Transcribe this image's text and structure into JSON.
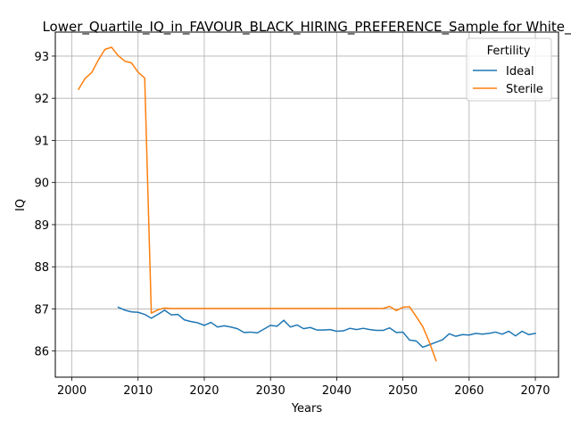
{
  "chart_data": {
    "type": "line",
    "title": "Lower_Quartile_IQ_in_FAVOUR_BLACK_HIRING_PREFERENCE_Sample for White_",
    "xlabel": "Years",
    "ylabel": "IQ",
    "xlim": [
      1997.5,
      2073.5
    ],
    "ylim": [
      85.38,
      93.57
    ],
    "xticks": [
      2000,
      2010,
      2020,
      2030,
      2040,
      2050,
      2060,
      2070
    ],
    "yticks": [
      86,
      87,
      88,
      89,
      90,
      91,
      92,
      93
    ],
    "grid": true,
    "legend": {
      "title": "Fertility",
      "placement": "top-right"
    },
    "series": [
      {
        "name": "Ideal",
        "color": "#1f77b4",
        "x": [
          2007,
          2008,
          2009,
          2010,
          2011,
          2012,
          2013,
          2014,
          2015,
          2016,
          2017,
          2018,
          2019,
          2020,
          2021,
          2022,
          2023,
          2024,
          2025,
          2026,
          2027,
          2028,
          2029,
          2030,
          2031,
          2032,
          2033,
          2034,
          2035,
          2036,
          2037,
          2038,
          2039,
          2040,
          2041,
          2042,
          2043,
          2044,
          2045,
          2046,
          2047,
          2048,
          2049,
          2050,
          2051,
          2052,
          2053,
          2054,
          2055,
          2056,
          2057,
          2058,
          2059,
          2060,
          2061,
          2062,
          2063,
          2064,
          2065,
          2066,
          2067,
          2068,
          2069,
          2070
        ],
        "y": [
          87.04,
          86.97,
          86.93,
          86.92,
          86.87,
          86.78,
          86.87,
          86.97,
          86.86,
          86.87,
          86.74,
          86.7,
          86.67,
          86.61,
          86.68,
          86.57,
          86.6,
          86.57,
          86.53,
          86.44,
          86.45,
          86.43,
          86.52,
          86.61,
          86.59,
          86.73,
          86.57,
          86.62,
          86.53,
          86.56,
          86.5,
          86.5,
          86.51,
          86.47,
          86.48,
          86.54,
          86.51,
          86.54,
          86.51,
          86.49,
          86.49,
          86.55,
          86.44,
          86.45,
          86.26,
          86.24,
          86.09,
          86.15,
          86.21,
          86.27,
          86.41,
          86.35,
          86.39,
          86.38,
          86.42,
          86.4,
          86.42,
          86.45,
          86.4,
          86.47,
          86.36,
          86.47,
          86.39,
          86.42
        ]
      },
      {
        "name": "Sterile",
        "color": "#ff7f0e",
        "x": [
          2001,
          2002,
          2003,
          2004,
          2005,
          2006,
          2007,
          2008,
          2009,
          2010,
          2011,
          2012,
          2013,
          2014,
          2015,
          2016,
          2017,
          2018,
          2019,
          2020,
          2021,
          2022,
          2023,
          2024,
          2025,
          2026,
          2027,
          2028,
          2029,
          2030,
          2031,
          2032,
          2033,
          2034,
          2035,
          2036,
          2037,
          2038,
          2039,
          2040,
          2041,
          2042,
          2043,
          2044,
          2045,
          2046,
          2047,
          2048,
          2049,
          2050,
          2051,
          2052,
          2053,
          2054,
          2055
        ],
        "y": [
          92.21,
          92.47,
          92.61,
          92.91,
          93.16,
          93.21,
          93.01,
          92.88,
          92.84,
          92.62,
          92.48,
          86.9,
          86.98,
          87.02,
          87.01,
          87.01,
          87.01,
          87.01,
          87.01,
          87.01,
          87.01,
          87.01,
          87.01,
          87.01,
          87.01,
          87.01,
          87.01,
          87.01,
          87.01,
          87.01,
          87.01,
          87.01,
          87.01,
          87.01,
          87.01,
          87.01,
          87.01,
          87.01,
          87.01,
          87.01,
          87.01,
          87.01,
          87.01,
          87.01,
          87.01,
          87.01,
          87.01,
          87.06,
          86.96,
          87.04,
          87.05,
          86.82,
          86.58,
          86.21,
          85.77
        ]
      }
    ]
  }
}
